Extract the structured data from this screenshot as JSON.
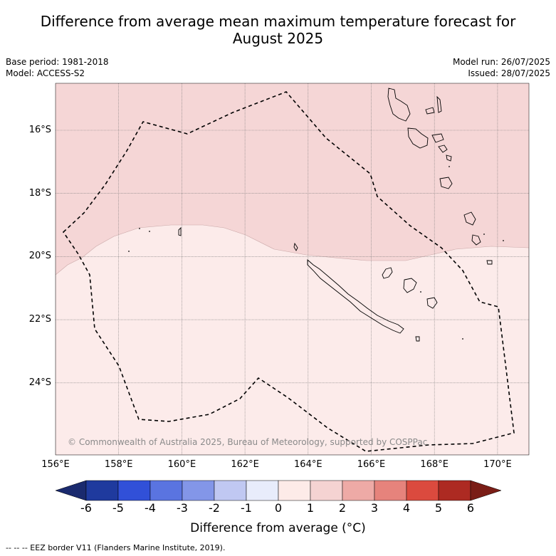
{
  "title_line1": "Difference from average mean maximum temperature forecast for",
  "title_line2": "August 2025",
  "meta_left": {
    "base_period": "Base period: 1981-2018",
    "model": "Model: ACCESS-S2"
  },
  "meta_right": {
    "model_run": "Model run: 26/07/2025",
    "issued": "Issued: 28/07/2025"
  },
  "map": {
    "lon_labels": [
      "156°E",
      "158°E",
      "160°E",
      "162°E",
      "164°E",
      "166°E",
      "168°E",
      "170°E"
    ],
    "lat_labels": [
      "16°S",
      "18°S",
      "20°S",
      "22°S",
      "24°S"
    ],
    "region_colors": {
      "north_anomaly": "#f5d6d6",
      "south_anomaly": "#fcebea"
    },
    "copyright": "© Commonwealth of Australia 2025, Bureau of Meteorology, supported by COSPPac"
  },
  "colorbar": {
    "labels": [
      "-6",
      "-5",
      "-4",
      "-3",
      "-2",
      "-1",
      "0",
      "1",
      "2",
      "3",
      "4",
      "5",
      "6"
    ],
    "colors": [
      "#1f3a9e",
      "#3150d8",
      "#5a74e0",
      "#8396e8",
      "#c0c8f2",
      "#e8ecfb",
      "#fdebe8",
      "#f5d3d2",
      "#eeaaa6",
      "#e6837c",
      "#db4a3e",
      "#ad2a22"
    ],
    "low_extend_color": "#1a2a6e",
    "high_extend_color": "#7a1d16",
    "title": "Difference from average (°C)"
  },
  "footnote": "--  --  -- EEZ border V11 (Flanders Marine Institute, 2019)."
}
